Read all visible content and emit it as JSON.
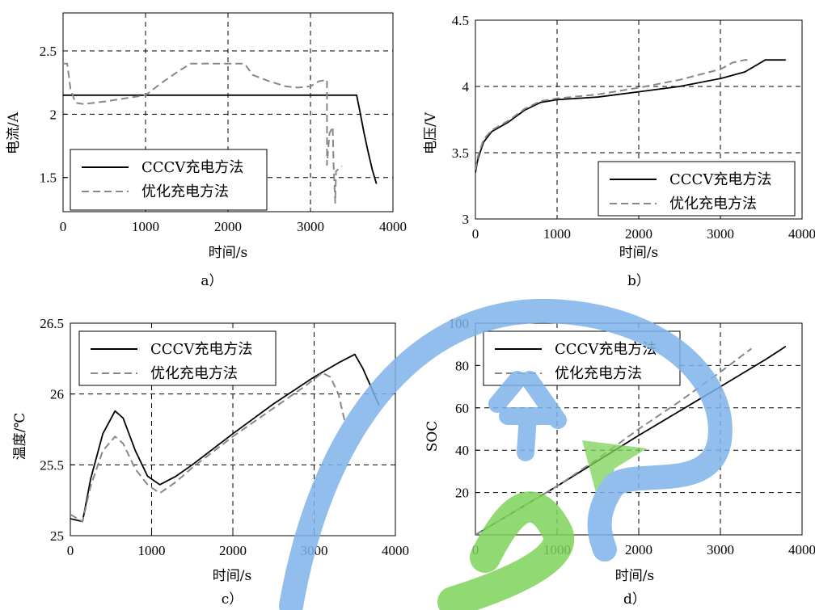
{
  "chart_data": [
    {
      "id": "a",
      "type": "line",
      "caption": "a）",
      "xlabel": "时间/s",
      "ylabel": "电流/A",
      "xlim": [
        0,
        4000
      ],
      "ylim": [
        1.23,
        2.8
      ],
      "xticks": [
        0,
        1000,
        2000,
        3000,
        4000
      ],
      "yticks": [
        1.5,
        2,
        2.5
      ],
      "ytick_labels": [
        "1.5",
        "2",
        "2.5"
      ],
      "grid": true,
      "legend_position": "lower-left",
      "series": [
        {
          "name": "CCCV充电方法",
          "style": "solid",
          "color": "#000000",
          "points": [
            [
              0,
              2.15
            ],
            [
              3560,
              2.15
            ],
            [
              3600,
              2.02
            ],
            [
              3650,
              1.85
            ],
            [
              3700,
              1.7
            ],
            [
              3750,
              1.56
            ],
            [
              3800,
              1.45
            ]
          ]
        },
        {
          "name": "优化充电方法",
          "style": "dashed",
          "color": "#888888",
          "points": [
            [
              0,
              2.4
            ],
            [
              50,
              2.4
            ],
            [
              90,
              2.2
            ],
            [
              150,
              2.09
            ],
            [
              250,
              2.08
            ],
            [
              500,
              2.1
            ],
            [
              800,
              2.13
            ],
            [
              1000,
              2.15
            ],
            [
              1200,
              2.25
            ],
            [
              1400,
              2.34
            ],
            [
              1550,
              2.4
            ],
            [
              2200,
              2.4
            ],
            [
              2300,
              2.31
            ],
            [
              2500,
              2.26
            ],
            [
              2700,
              2.22
            ],
            [
              2850,
              2.21
            ],
            [
              3000,
              2.22
            ],
            [
              3100,
              2.26
            ],
            [
              3190,
              2.27
            ],
            [
              3200,
              2.27
            ],
            [
              3200,
              1.6
            ],
            [
              3230,
              1.85
            ],
            [
              3270,
              1.9
            ],
            [
              3280,
              1.6
            ],
            [
              3300,
              1.3
            ],
            [
              3310,
              1.55
            ],
            [
              3380,
              1.59
            ]
          ]
        }
      ]
    },
    {
      "id": "b",
      "type": "line",
      "caption": "b）",
      "xlabel": "时间/s",
      "ylabel": "电压/V",
      "xlim": [
        0,
        4000
      ],
      "ylim": [
        3,
        4.5
      ],
      "xticks": [
        0,
        1000,
        2000,
        3000,
        4000
      ],
      "yticks": [
        3,
        3.5,
        4,
        4.5
      ],
      "ytick_labels": [
        "3",
        "3.5",
        "4",
        "4.5"
      ],
      "grid": true,
      "legend_position": "lower-right",
      "series": [
        {
          "name": "CCCV充电方法",
          "style": "solid",
          "color": "#000000",
          "points": [
            [
              0,
              3.35
            ],
            [
              30,
              3.45
            ],
            [
              100,
              3.58
            ],
            [
              200,
              3.66
            ],
            [
              400,
              3.73
            ],
            [
              600,
              3.82
            ],
            [
              800,
              3.88
            ],
            [
              1000,
              3.9
            ],
            [
              1500,
              3.92
            ],
            [
              2000,
              3.96
            ],
            [
              2500,
              4.0
            ],
            [
              3000,
              4.06
            ],
            [
              3300,
              4.11
            ],
            [
              3550,
              4.2
            ],
            [
              3800,
              4.2
            ]
          ]
        },
        {
          "name": "优化充电方法",
          "style": "dashed",
          "color": "#888888",
          "points": [
            [
              0,
              3.37
            ],
            [
              30,
              3.47
            ],
            [
              100,
              3.6
            ],
            [
              200,
              3.67
            ],
            [
              400,
              3.74
            ],
            [
              600,
              3.83
            ],
            [
              800,
              3.89
            ],
            [
              1000,
              3.91
            ],
            [
              1500,
              3.94
            ],
            [
              2000,
              3.99
            ],
            [
              2500,
              4.05
            ],
            [
              3000,
              4.13
            ],
            [
              3150,
              4.18
            ],
            [
              3300,
              4.2
            ],
            [
              3380,
              4.2
            ]
          ]
        }
      ]
    },
    {
      "id": "c",
      "type": "line",
      "caption": "c）",
      "xlabel": "时间/s",
      "ylabel": "温度/℃",
      "xlim": [
        0,
        4000
      ],
      "ylim": [
        25,
        26.5
      ],
      "xticks": [
        0,
        1000,
        2000,
        3000,
        4000
      ],
      "yticks": [
        25,
        25.5,
        26,
        26.5
      ],
      "ytick_labels": [
        "25",
        "25.5",
        "26",
        "26.5"
      ],
      "grid": true,
      "legend_position": "top-left",
      "series": [
        {
          "name": "CCCV充电方法",
          "style": "solid",
          "color": "#000000",
          "points": [
            [
              0,
              25.12
            ],
            [
              150,
              25.1
            ],
            [
              250,
              25.4
            ],
            [
              400,
              25.72
            ],
            [
              550,
              25.88
            ],
            [
              650,
              25.83
            ],
            [
              800,
              25.6
            ],
            [
              950,
              25.42
            ],
            [
              1100,
              25.36
            ],
            [
              1300,
              25.42
            ],
            [
              1500,
              25.5
            ],
            [
              2000,
              25.72
            ],
            [
              2500,
              25.93
            ],
            [
              3000,
              26.12
            ],
            [
              3300,
              26.22
            ],
            [
              3500,
              26.28
            ],
            [
              3600,
              26.18
            ],
            [
              3700,
              26.05
            ],
            [
              3800,
              25.92
            ]
          ]
        },
        {
          "name": "优化充电方法",
          "style": "dashed",
          "color": "#888888",
          "points": [
            [
              0,
              25.15
            ],
            [
              150,
              25.1
            ],
            [
              250,
              25.35
            ],
            [
              400,
              25.6
            ],
            [
              550,
              25.7
            ],
            [
              650,
              25.65
            ],
            [
              800,
              25.47
            ],
            [
              950,
              25.36
            ],
            [
              1100,
              25.3
            ],
            [
              1300,
              25.38
            ],
            [
              1500,
              25.48
            ],
            [
              2000,
              25.7
            ],
            [
              2500,
              25.9
            ],
            [
              2900,
              26.06
            ],
            [
              3100,
              26.15
            ],
            [
              3200,
              26.12
            ],
            [
              3300,
              26.0
            ],
            [
              3380,
              25.8
            ]
          ]
        }
      ]
    },
    {
      "id": "d",
      "type": "line",
      "caption": "d）",
      "xlabel": "时间/s",
      "ylabel": "SOC",
      "xlim": [
        0,
        4000
      ],
      "ylim": [
        0,
        100
      ],
      "xticks": [
        0,
        1000,
        2000,
        3000,
        4000
      ],
      "yticks": [
        20,
        40,
        60,
        80,
        100
      ],
      "ytick_labels": [
        "20",
        "40",
        "60",
        "80",
        "100"
      ],
      "grid": true,
      "legend_position": "top-left",
      "series": [
        {
          "name": "CCCV充电方法",
          "style": "solid",
          "color": "#000000",
          "points": [
            [
              0,
              0
            ],
            [
              1000,
              23
            ],
            [
              2000,
              47
            ],
            [
              3000,
              70
            ],
            [
              3560,
              83
            ],
            [
              3800,
              89
            ]
          ]
        },
        {
          "name": "优化充电方法",
          "style": "dashed",
          "color": "#888888",
          "points": [
            [
              0,
              0
            ],
            [
              1000,
              23
            ],
            [
              1500,
              36
            ],
            [
              2000,
              50
            ],
            [
              2500,
              63
            ],
            [
              3000,
              77
            ],
            [
              3380,
              88
            ]
          ]
        }
      ]
    }
  ]
}
